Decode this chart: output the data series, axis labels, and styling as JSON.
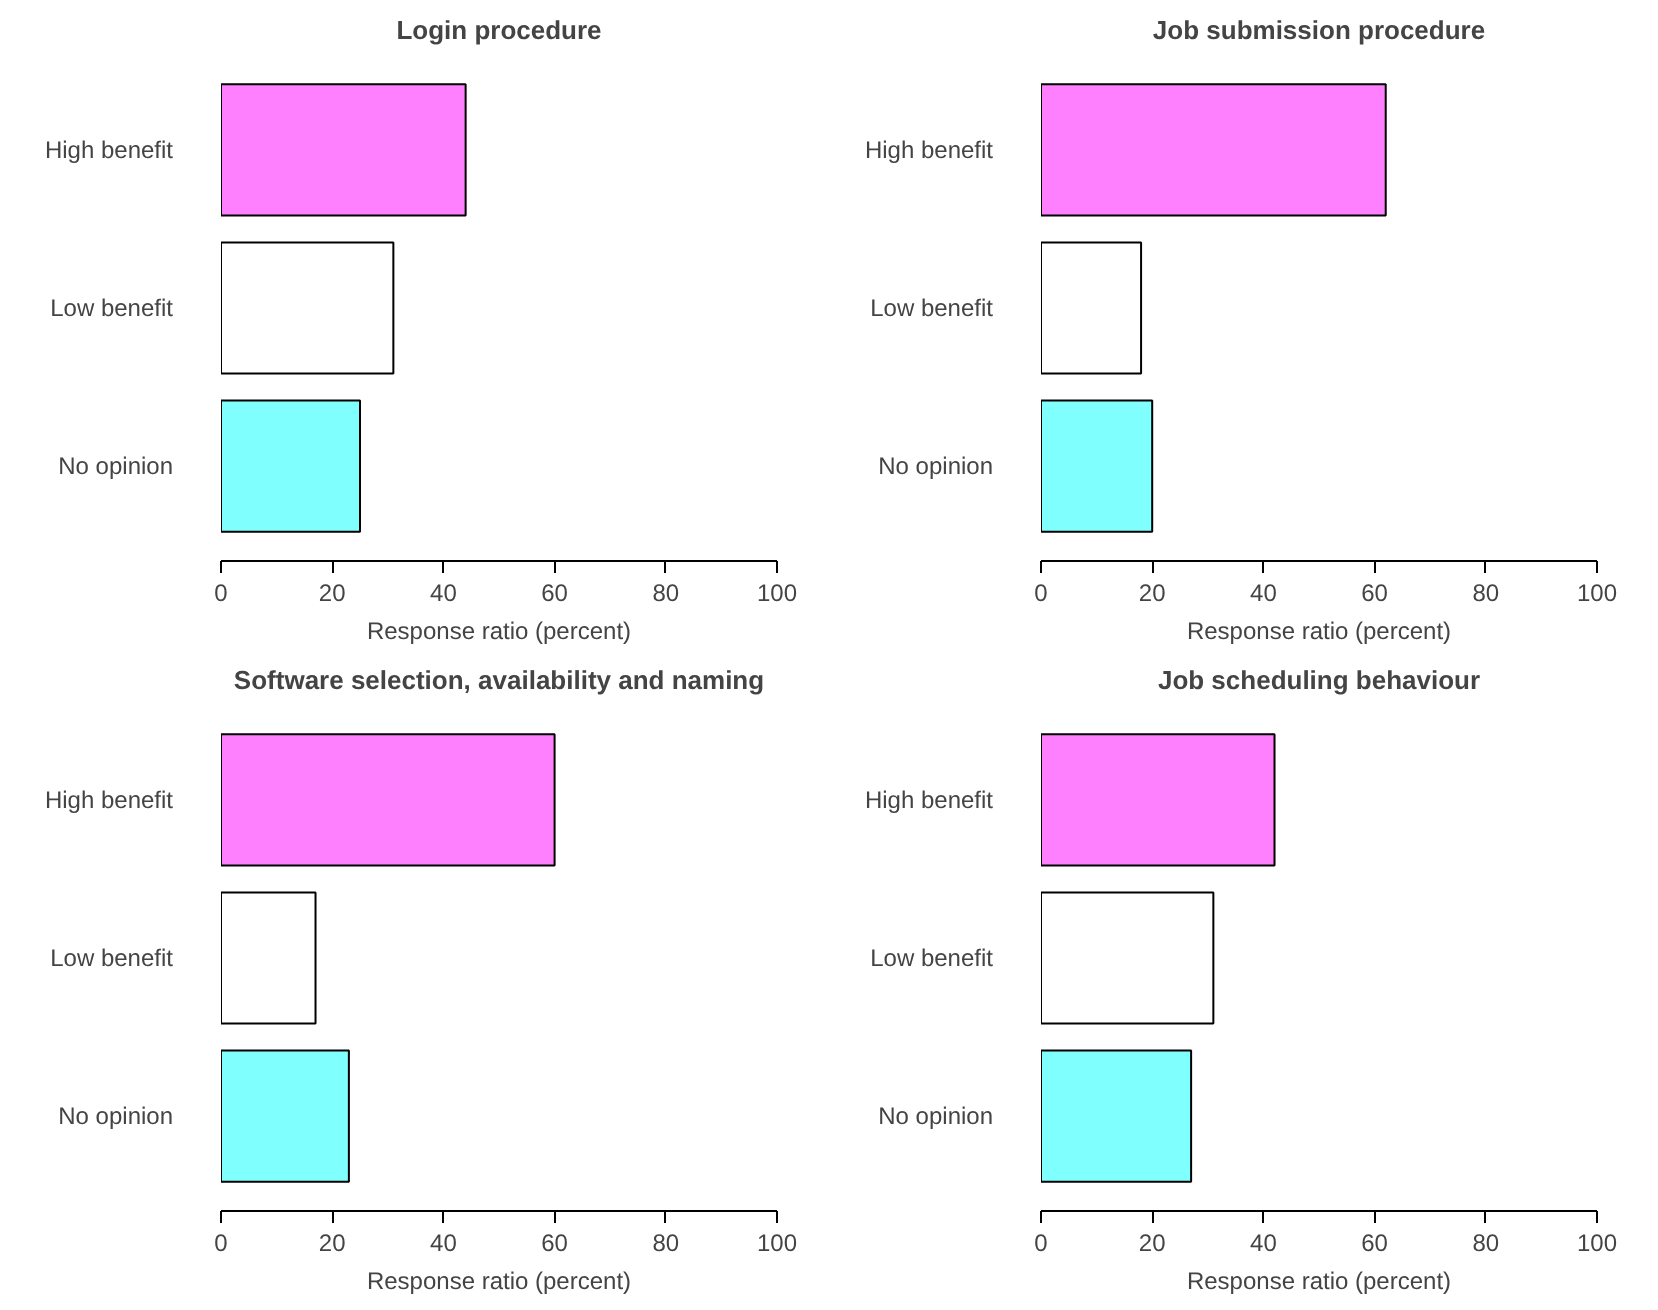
{
  "chart_data": [
    {
      "type": "bar",
      "orientation": "horizontal",
      "title": "Login procedure",
      "xlabel": "Response ratio (percent)",
      "categories": [
        "High benefit",
        "Low benefit",
        "No opinion"
      ],
      "values": [
        44,
        31,
        25
      ],
      "colors": [
        "#ff80ff",
        "#ffffff",
        "#80ffff"
      ],
      "xlim": [
        0,
        100
      ],
      "xticks": [
        0,
        20,
        40,
        60,
        80,
        100
      ]
    },
    {
      "type": "bar",
      "orientation": "horizontal",
      "title": "Job submission procedure",
      "xlabel": "Response ratio (percent)",
      "categories": [
        "High benefit",
        "Low benefit",
        "No opinion"
      ],
      "values": [
        62,
        18,
        20
      ],
      "colors": [
        "#ff80ff",
        "#ffffff",
        "#80ffff"
      ],
      "xlim": [
        0,
        100
      ],
      "xticks": [
        0,
        20,
        40,
        60,
        80,
        100
      ]
    },
    {
      "type": "bar",
      "orientation": "horizontal",
      "title": "Software selection, availability and naming",
      "xlabel": "Response ratio (percent)",
      "categories": [
        "High benefit",
        "Low benefit",
        "No opinion"
      ],
      "values": [
        60,
        17,
        23
      ],
      "colors": [
        "#ff80ff",
        "#ffffff",
        "#80ffff"
      ],
      "xlim": [
        0,
        100
      ],
      "xticks": [
        0,
        20,
        40,
        60,
        80,
        100
      ]
    },
    {
      "type": "bar",
      "orientation": "horizontal",
      "title": "Job scheduling behaviour",
      "xlabel": "Response ratio (percent)",
      "categories": [
        "High benefit",
        "Low benefit",
        "No opinion"
      ],
      "values": [
        42,
        31,
        27
      ],
      "colors": [
        "#ff80ff",
        "#ffffff",
        "#80ffff"
      ],
      "xlim": [
        0,
        100
      ],
      "xticks": [
        0,
        20,
        40,
        60,
        80,
        100
      ]
    }
  ]
}
